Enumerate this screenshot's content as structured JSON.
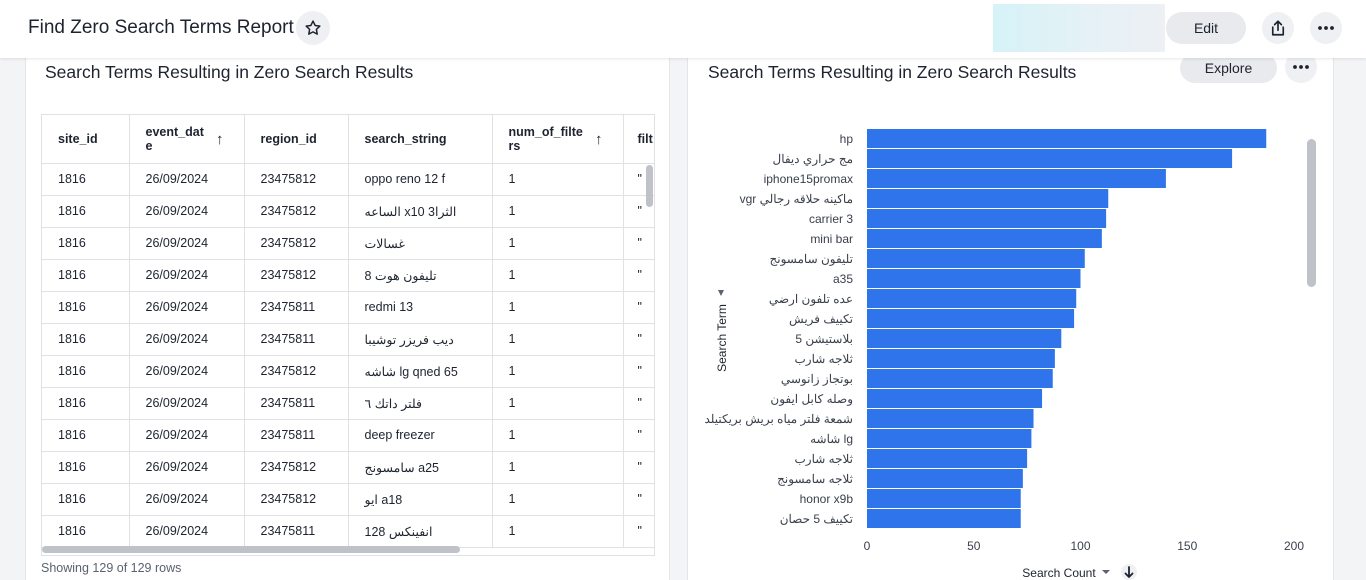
{
  "header": {
    "title": "Find Zero Search Terms Report",
    "edit_label": "Edit",
    "icons": {
      "star": "star-icon",
      "share": "share-icon",
      "more": "more-horizontal-icon"
    }
  },
  "table_card": {
    "title": "Search Terms Resulting in Zero Search Results",
    "columns": [
      {
        "label": "site_id"
      },
      {
        "label": "event_date",
        "sort": "asc"
      },
      {
        "label": "region_id"
      },
      {
        "label": "search_string"
      },
      {
        "label": "num_of_filters",
        "sort": "asc"
      },
      {
        "label": "filt"
      }
    ],
    "rows": [
      [
        "1816",
        "26/09/2024",
        "23475812",
        "oppo reno 12 f",
        "1",
        "\""
      ],
      [
        "1816",
        "26/09/2024",
        "23475812",
        "الساعه x10 الثرا3",
        "1",
        "\""
      ],
      [
        "1816",
        "26/09/2024",
        "23475812",
        "غسالات",
        "1",
        "\""
      ],
      [
        "1816",
        "26/09/2024",
        "23475812",
        "تليفون هوت 8",
        "1",
        "\""
      ],
      [
        "1816",
        "26/09/2024",
        "23475811",
        "redmi 13",
        "1",
        "\""
      ],
      [
        "1816",
        "26/09/2024",
        "23475811",
        "ديب فريزر توشيبا",
        "1",
        "\""
      ],
      [
        "1816",
        "26/09/2024",
        "23475812",
        "شاشه lg qned 65",
        "1",
        "\""
      ],
      [
        "1816",
        "26/09/2024",
        "23475811",
        "فلتر داتك ٦",
        "1",
        "\""
      ],
      [
        "1816",
        "26/09/2024",
        "23475811",
        "deep freezer",
        "1",
        "\""
      ],
      [
        "1816",
        "26/09/2024",
        "23475812",
        "سامسونج a25",
        "1",
        "\""
      ],
      [
        "1816",
        "26/09/2024",
        "23475812",
        "ايو a18",
        "1",
        "\""
      ],
      [
        "1816",
        "26/09/2024",
        "23475811",
        "انفينكس 128",
        "1",
        "\""
      ]
    ],
    "row_count_text": "Showing 129 of 129 rows"
  },
  "chart_card": {
    "title": "Search Terms Resulting in Zero Search Results",
    "explore_label": "Explore",
    "bar_color": "#2f74eb"
  },
  "chart_data": {
    "type": "bar",
    "orientation": "horizontal",
    "ylabel": "Search Term",
    "xlabel": "Search Count",
    "xlim": [
      0,
      200
    ],
    "xticks": [
      0,
      50,
      100,
      150,
      200
    ],
    "grid": false,
    "categories": [
      "hp",
      "مج حراري ديفال",
      "iphone15promax",
      "vgr ماكينه حلاقه رجالي",
      "carrier 3",
      "mini bar",
      "تليفون سامسونج",
      "a35",
      "عده تلفون ارضي",
      "تكييف فريش",
      "بلاستيشن 5",
      "ثلاجه شارب",
      "بوتجاز زانوسي",
      "وصله كابل ايفون",
      "شمعة فلتر مياه بريش بريكتيلد",
      "شاشه lg",
      "ثلاجه شارب",
      "ثلاجه سامسونج",
      "honor x9b",
      "تكييف 5 حصان"
    ],
    "values": [
      187,
      171,
      140,
      113,
      112,
      110,
      102,
      100,
      98,
      97,
      91,
      88,
      87,
      82,
      78,
      77,
      75,
      73,
      72,
      72
    ]
  }
}
